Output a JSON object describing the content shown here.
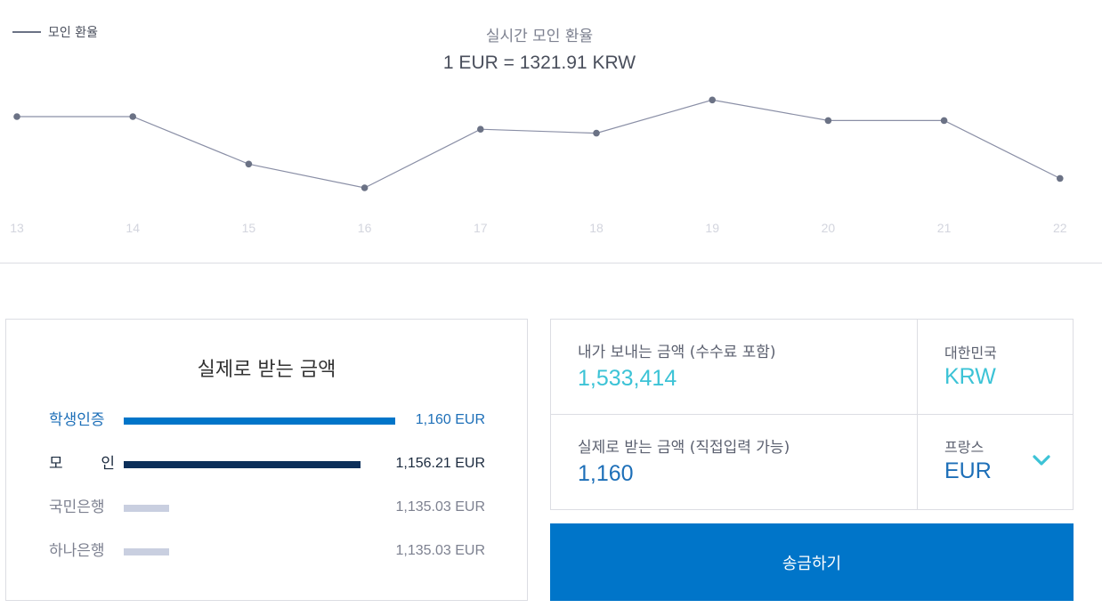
{
  "chart": {
    "legend_label": "모인 환율",
    "title": "실시간 모인 환율",
    "rate_text": "1 EUR = 1321.91 KRW",
    "line_color": "#8a8fa6",
    "point_color": "#6b7285"
  },
  "chart_data": {
    "type": "line",
    "title": "실시간 모인 환율",
    "categories": [
      "13",
      "14",
      "15",
      "16",
      "17",
      "18",
      "19",
      "20",
      "21",
      "22"
    ],
    "series": [
      {
        "name": "모인 환율",
        "values": [
          1324.0,
          1324.0,
          1318.0,
          1315.0,
          1322.4,
          1321.9,
          1326.1,
          1323.5,
          1323.5,
          1316.2
        ]
      }
    ],
    "ylim": [
      1305,
      1334
    ],
    "grid": false,
    "legend": "top-left"
  },
  "compare": {
    "title": "실제로 받는 금액",
    "rows": [
      {
        "name_chars": [
          "학생인증"
        ],
        "value": "1,160 EUR",
        "amount": 1160,
        "label_color": "#1d6fb8",
        "value_color": "#1d6fb8",
        "bar_color": "#0075c9"
      },
      {
        "name_chars": [
          "모",
          "인"
        ],
        "value": "1,156.21 EUR",
        "amount": 1156.21,
        "label_color": "#1b2a3e",
        "value_color": "#1b2a3e",
        "bar_color": "#0c2f5a"
      },
      {
        "name_chars": [
          "국민은행"
        ],
        "value": "1,135.03 EUR",
        "amount": 1135.03,
        "label_color": "#7d8190",
        "value_color": "#7d8190",
        "bar_color": "#c9cfe0"
      },
      {
        "name_chars": [
          "하나은행"
        ],
        "value": "1,135.03 EUR",
        "amount": 1135.03,
        "label_color": "#7d8190",
        "value_color": "#7d8190",
        "bar_color": "#c9cfe0"
      }
    ]
  },
  "form": {
    "send_label": "내가 보내는 금액 (수수료 포함)",
    "send_value": "1,533,414",
    "send_country": "대한민국",
    "send_currency": "KRW",
    "receive_label": "실제로 받는 금액 (직접입력 가능)",
    "receive_value": "1,160",
    "receive_country": "프랑스",
    "receive_currency": "EUR",
    "chevron_icon": "chevron-down-icon",
    "submit_label": "송금하기"
  },
  "colors": {
    "accent": "#0075c9",
    "teal": "#3cc3d6",
    "text_blue": "#1d6fb8"
  }
}
